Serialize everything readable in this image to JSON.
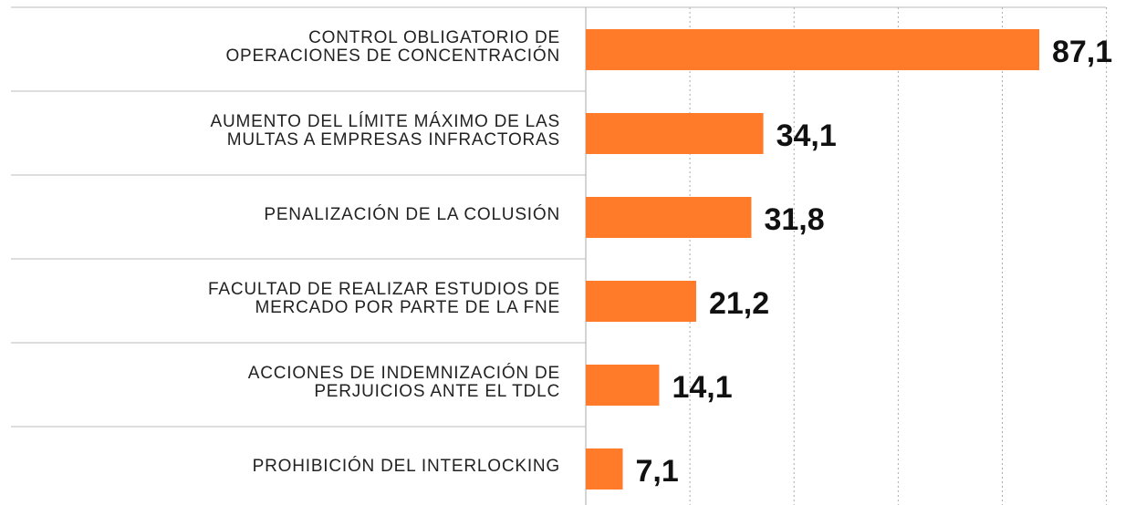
{
  "chart_data": {
    "type": "bar",
    "orientation": "horizontal",
    "categories": [
      "CONTROL OBLIGATORIO DE\nOPERACIONES DE CONCENTRACIÓN",
      "AUMENTO DEL LÍMITE MÁXIMO DE LAS\nMULTAS A EMPRESAS INFRACTORAS",
      "PENALIZACIÓN DE LA COLUSIÓN",
      "FACULTAD DE REALIZAR ESTUDIOS DE\nMERCADO POR PARTE DE LA FNE",
      "ACCIONES DE INDEMNIZACIÓN DE\nPERJUICIOS ANTE EL TDLC",
      "PROHIBICIÓN DEL INTERLOCKING"
    ],
    "values": [
      87.1,
      34.1,
      31.8,
      21.2,
      14.1,
      7.1
    ],
    "value_labels": [
      "87,1",
      "34,1",
      "31,8",
      "21,2",
      "14,1",
      "7,1"
    ],
    "color": "#ff7a29",
    "xlim": [
      0,
      100
    ],
    "xticks": [
      0,
      20,
      40,
      60,
      80,
      100
    ],
    "grid": true
  }
}
